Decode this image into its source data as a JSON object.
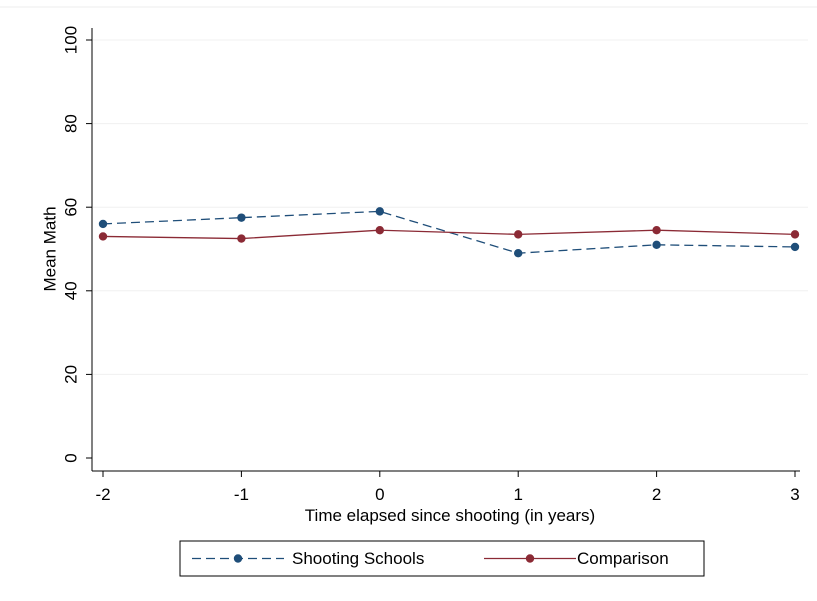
{
  "chart_data": {
    "type": "line",
    "xlabel": "Time elapsed since shooting (in years)",
    "ylabel": "Mean Math",
    "x": [
      -2,
      -1,
      0,
      1,
      2,
      3
    ],
    "xticks": [
      "-2",
      "-1",
      "0",
      "1",
      "2",
      "3"
    ],
    "yticks": [
      "0",
      "20",
      "40",
      "60",
      "80",
      "100"
    ],
    "ylim": [
      0,
      100
    ],
    "grid": "horizontal",
    "legend_position": "bottom",
    "series": [
      {
        "name": "Shooting Schools",
        "values": [
          56,
          57.5,
          59,
          49,
          51,
          50.5
        ],
        "color": "#1f4e79",
        "line_style": "dashed"
      },
      {
        "name": "Comparison",
        "values": [
          53,
          52.5,
          54.5,
          53.5,
          54.5,
          53.5
        ],
        "color": "#8b2a35",
        "line_style": "solid"
      }
    ]
  }
}
